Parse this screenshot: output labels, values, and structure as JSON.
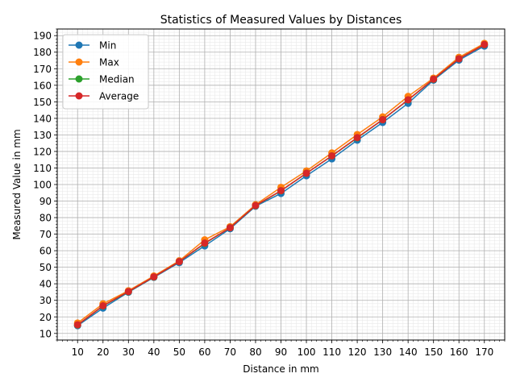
{
  "chart_data": {
    "type": "line",
    "title": "Statistics of Measured Values by Distances",
    "xlabel": "Distance in mm",
    "ylabel": "Measured Value in mm",
    "x": [
      10,
      20,
      30,
      40,
      50,
      60,
      70,
      80,
      90,
      100,
      110,
      120,
      130,
      140,
      150,
      160,
      170
    ],
    "xlim": [
      2,
      178
    ],
    "ylim": [
      6,
      194
    ],
    "x_ticks": [
      10,
      20,
      30,
      40,
      50,
      60,
      70,
      80,
      90,
      100,
      110,
      120,
      130,
      140,
      150,
      160,
      170
    ],
    "y_ticks": [
      10,
      20,
      30,
      40,
      50,
      60,
      70,
      80,
      90,
      100,
      110,
      120,
      130,
      140,
      150,
      160,
      170,
      180,
      190
    ],
    "grid": true,
    "minor_grid": true,
    "legend_position": "upper-left",
    "series": [
      {
        "name": "Min",
        "color": "#1f77b4",
        "values": [
          14.7,
          25.3,
          34.9,
          43.9,
          52.8,
          62.9,
          73.3,
          86.9,
          94.6,
          105.3,
          115.5,
          126.8,
          137.5,
          149.1,
          163.1,
          175.2,
          183.7
        ]
      },
      {
        "name": "Max",
        "color": "#ff7f0e",
        "values": [
          16.3,
          27.9,
          35.8,
          44.7,
          53.9,
          66.6,
          74.5,
          87.8,
          98.3,
          108.2,
          119.1,
          130.2,
          140.9,
          153.3,
          164.3,
          176.9,
          185.3
        ]
      },
      {
        "name": "Median",
        "color": "#2ca02c",
        "values": [
          15.1,
          26.6,
          35.2,
          44.1,
          53.4,
          64.4,
          73.9,
          87.2,
          96.2,
          106.8,
          117.3,
          128.2,
          139.2,
          151.1,
          163.6,
          176.0,
          184.5
        ]
      },
      {
        "name": "Average",
        "color": "#d62728",
        "values": [
          15.2,
          26.7,
          35.3,
          44.2,
          53.4,
          64.6,
          73.9,
          87.3,
          96.3,
          106.8,
          117.3,
          128.4,
          139.2,
          151.2,
          163.7,
          176.0,
          184.6
        ]
      }
    ]
  }
}
